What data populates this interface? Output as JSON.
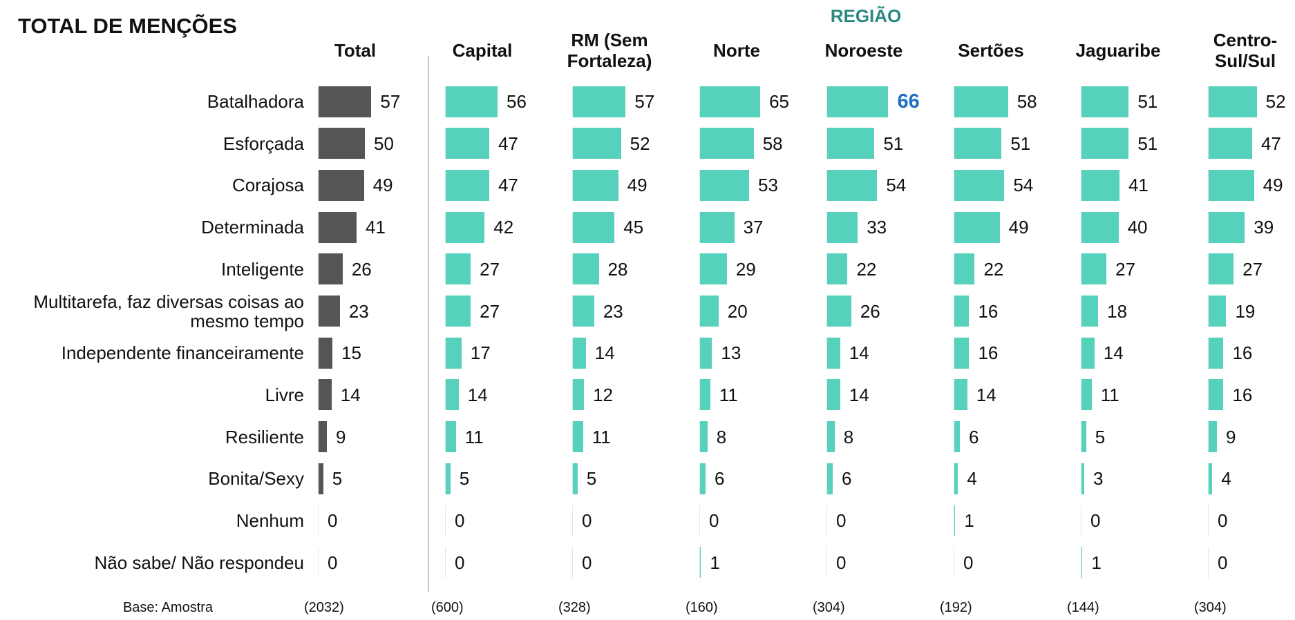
{
  "chart_data": {
    "type": "bar",
    "orientation": "horizontal",
    "title": "TOTAL DE MENÇÕES",
    "group_label": "REGIÃO",
    "base_label": "Base: Amostra",
    "categories": [
      "Batalhadora",
      "Esforçada",
      "Corajosa",
      "Determinada",
      "Inteligente",
      "Multitarefa, faz diversas coisas ao mesmo tempo",
      "Independente financeiramente",
      "Livre",
      "Resiliente",
      "Bonita/Sexy",
      "Nenhum",
      "Não sabe/ Não respondeu"
    ],
    "series": [
      {
        "name": "Total",
        "color": "#555555",
        "base": "(2032)",
        "values": [
          57,
          50,
          49,
          41,
          26,
          23,
          15,
          14,
          9,
          5,
          0,
          0
        ]
      },
      {
        "name": "Capital",
        "color": "#56d1bb",
        "base": "(600)",
        "values": [
          56,
          47,
          47,
          42,
          27,
          27,
          17,
          14,
          11,
          5,
          0,
          0
        ]
      },
      {
        "name": "RM (Sem Fortaleza)",
        "color": "#56d1bb",
        "base": "(328)",
        "values": [
          57,
          52,
          49,
          45,
          28,
          23,
          14,
          12,
          11,
          5,
          0,
          0
        ]
      },
      {
        "name": "Norte",
        "color": "#56d1bb",
        "base": "(160)",
        "values": [
          65,
          58,
          53,
          37,
          29,
          20,
          13,
          11,
          8,
          6,
          0,
          1
        ]
      },
      {
        "name": "Noroeste",
        "color": "#56d1bb",
        "base": "(304)",
        "values": [
          66,
          51,
          54,
          33,
          22,
          26,
          14,
          14,
          8,
          6,
          0,
          0
        ],
        "highlight_index": 0,
        "highlight_color": "#1f6fc5"
      },
      {
        "name": "Sertões",
        "color": "#56d1bb",
        "base": "(192)",
        "values": [
          58,
          51,
          54,
          49,
          22,
          16,
          16,
          14,
          6,
          4,
          1,
          0
        ]
      },
      {
        "name": "Jaguaribe",
        "color": "#56d1bb",
        "base": "(144)",
        "values": [
          51,
          51,
          41,
          40,
          27,
          18,
          14,
          11,
          5,
          3,
          0,
          1
        ]
      },
      {
        "name": "Centro-Sul/Sul",
        "color": "#56d1bb",
        "base": "(304)",
        "values": [
          52,
          47,
          49,
          39,
          27,
          19,
          16,
          16,
          9,
          4,
          0,
          0
        ]
      }
    ]
  }
}
